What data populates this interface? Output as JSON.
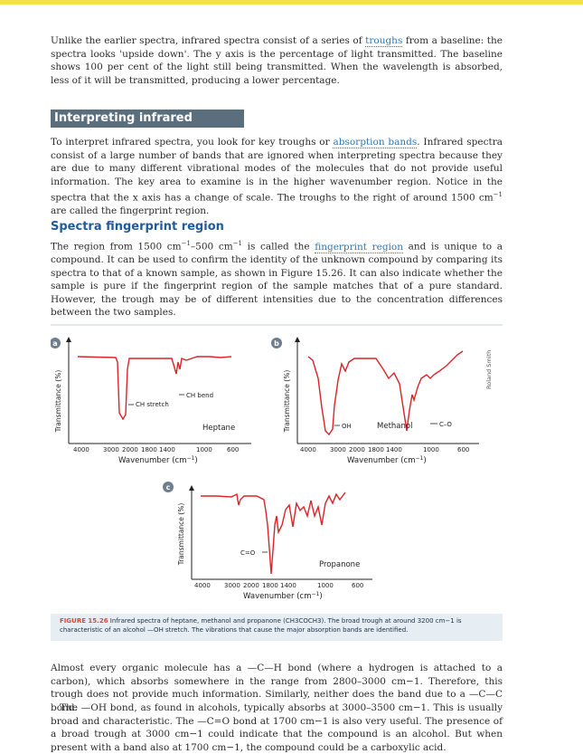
{
  "intro": {
    "text_a": "Unlike the earlier spectra, infrared spectra consist of a series of ",
    "link": "troughs",
    "text_b": " from a baseline: the spectra looks 'upside down'. The y axis is the percentage of light transmitted. The baseline shows 100 per cent of the light still being transmitted. When the wavelength is absorbed, less of it will be transmitted, producing a lower percentage."
  },
  "section": {
    "title": "Interpreting infrared spectra"
  },
  "interpret": {
    "text_a": "To interpret infrared spectra, you look for key troughs or ",
    "link": "absorption bands",
    "text_b": ". Infrared spectra consist of a large number of bands that are ignored when interpreting spectra because they are due to many different vibrational modes of the molecules that do not provide useful information. The key area to examine is in the higher wavenumber region. Notice in the spectra that the x axis has a change of scale. The troughs to the right of around 1500 cm",
    "sup": "−1",
    "text_c": " are called the fingerprint region."
  },
  "subsection": {
    "title": "Spectra fingerprint region"
  },
  "fingerprint": {
    "text_a": "The region from 1500 cm",
    "sup1": "−1",
    "text_b": "–500 cm",
    "sup2": "−1",
    "text_c": " is called the ",
    "link": "fingerprint region",
    "text_d": " and is unique to a compound. It can be used to confirm the identity of the unknown compound by comparing its spectra to that of a known sample, as shown in Figure 15.26. It can also indicate whether the sample is pure if the fingerprint region of the sample matches that of a pure standard. However, the trough may be of different intensities due to the concentration differences between the two samples."
  },
  "figure": {
    "credit": "Roland Smith",
    "panels": [
      {
        "badge": "a",
        "compound": "Heptane",
        "ylabel": "Transmittance (%)",
        "xlabel": "Wavenumber (cm",
        "xlabel_sup": "−1",
        "xlabel_end": ")",
        "ticks": [
          "4000",
          "3000",
          "2000",
          "1800",
          "1400",
          "1000",
          "600"
        ],
        "labels": [
          "CH stretch",
          "CH bend"
        ]
      },
      {
        "badge": "b",
        "compound": "Methanol",
        "ylabel": "Transmittance (%)",
        "xlabel": "Wavenumber (cm",
        "xlabel_sup": "−1",
        "xlabel_end": ")",
        "ticks": [
          "4000",
          "3000",
          "2000",
          "1800",
          "1400",
          "1000",
          "600"
        ],
        "labels": [
          "OH",
          "C–O"
        ]
      },
      {
        "badge": "c",
        "compound": "Propanone",
        "ylabel": "Transmittance (%)",
        "xlabel": "Wavenumber (cm",
        "xlabel_sup": "−1",
        "xlabel_end": ")",
        "ticks": [
          "4000",
          "3000",
          "2000",
          "1800",
          "1400",
          "1000",
          "600"
        ],
        "labels": [
          "C=O"
        ]
      }
    ],
    "caption_label": "FIGURE 15.26",
    "caption_text": " Infrared spectra of heptane, methanol and propanone (CH3COCH3). The broad trough at around 3200 cm−1 is characteristic of an alcohol —OH stretch. The vibrations that cause the major absorption bands are identified."
  },
  "closing": {
    "p1": "Almost every organic molecule has a —C—H bond (where a hydrogen is attached to a carbon), which absorbs somewhere in the range from 2800–3000 cm−1. Therefore, this trough does not provide much information. Similarly, neither does the band due to a —C—C bond.",
    "p2": "The —OH bond, as found in alcohols, typically absorbs at 3000–3500 cm−1. This is usually broad and characteristic. The —C=O bond at 1700 cm−1 is also very useful. The presence of a broad trough at 3000 cm−1 could indicate that the compound is an alcohol. But when present with a band also at 1700 cm−1, the compound could be a carboxylic acid."
  },
  "colors": {
    "accent_yellow": "#f2e14a",
    "spectrum_red": "#d8242a",
    "section_grey": "#5a6e7e",
    "link_blue": "#2a78b8",
    "caption_bg": "#e6edf3"
  }
}
